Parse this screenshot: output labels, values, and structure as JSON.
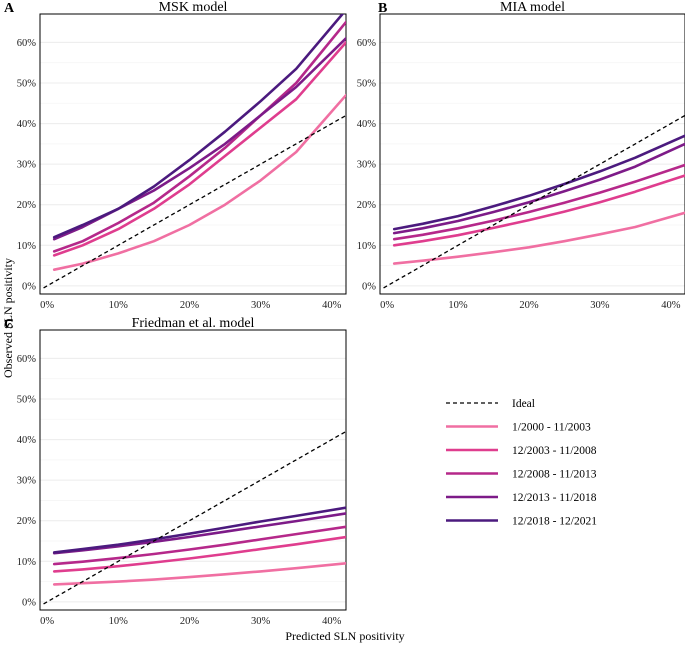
{
  "figure": {
    "xlabel": "Predicted SLN positivity",
    "ylabel": "Observed SLN positivity"
  },
  "legend": {
    "entries": [
      {
        "label": "Ideal",
        "color": "#000000",
        "dashed": true
      },
      {
        "label": "1/2000 - 11/2003",
        "color": "#f06fa2",
        "dashed": false
      },
      {
        "label": "12/2003 - 11/2008",
        "color": "#df3d8e",
        "dashed": false
      },
      {
        "label": "12/2008 - 11/2013",
        "color": "#b5288a",
        "dashed": false
      },
      {
        "label": "12/2013 - 11/2018",
        "color": "#7d1b88",
        "dashed": false
      },
      {
        "label": "12/2018 - 12/2021",
        "color": "#4b1a7e",
        "dashed": false
      }
    ]
  },
  "chart_data": [
    {
      "panel": "A",
      "title": "MSK model",
      "type": "line",
      "xlim": [
        -0.01,
        0.42
      ],
      "ylim": [
        -0.02,
        0.67
      ],
      "xticks": [
        0,
        0.1,
        0.2,
        0.3,
        0.4
      ],
      "yticks": [
        0,
        0.1,
        0.2,
        0.3,
        0.4,
        0.5,
        0.6
      ],
      "xtick_labels": [
        "0%",
        "10%",
        "20%",
        "30%",
        "40%"
      ],
      "ytick_labels": [
        "0%",
        "10%",
        "20%",
        "30%",
        "40%",
        "50%",
        "60%"
      ],
      "x": [
        0.01,
        0.05,
        0.1,
        0.15,
        0.2,
        0.25,
        0.3,
        0.35,
        0.42
      ],
      "series": [
        {
          "name": "1/2000 - 11/2003",
          "values": [
            0.04,
            0.055,
            0.08,
            0.11,
            0.15,
            0.2,
            0.26,
            0.33,
            0.47
          ]
        },
        {
          "name": "12/2003 - 11/2008",
          "values": [
            0.075,
            0.1,
            0.14,
            0.19,
            0.25,
            0.32,
            0.39,
            0.46,
            0.6
          ]
        },
        {
          "name": "12/2008 - 11/2013",
          "values": [
            0.085,
            0.11,
            0.155,
            0.205,
            0.27,
            0.34,
            0.42,
            0.5,
            0.65
          ]
        },
        {
          "name": "12/2013 - 11/2018",
          "values": [
            0.115,
            0.145,
            0.19,
            0.235,
            0.29,
            0.35,
            0.42,
            0.49,
            0.61
          ]
        },
        {
          "name": "12/2018 - 12/2021",
          "values": [
            0.12,
            0.15,
            0.19,
            0.245,
            0.31,
            0.38,
            0.455,
            0.535,
            0.68
          ]
        }
      ],
      "ideal": [
        [
          -0.005,
          -0.005
        ],
        [
          0.42,
          0.42
        ]
      ]
    },
    {
      "panel": "B",
      "title": "MIA model",
      "type": "line",
      "xlim": [
        -0.01,
        0.42
      ],
      "ylim": [
        -0.02,
        0.67
      ],
      "xticks": [
        0,
        0.1,
        0.2,
        0.3,
        0.4
      ],
      "yticks": [
        0,
        0.1,
        0.2,
        0.3,
        0.4,
        0.5,
        0.6
      ],
      "xtick_labels": [
        "0%",
        "10%",
        "20%",
        "30%",
        "40%"
      ],
      "ytick_labels": [
        "0%",
        "10%",
        "20%",
        "30%",
        "40%",
        "50%",
        "60%"
      ],
      "x": [
        0.01,
        0.05,
        0.1,
        0.15,
        0.2,
        0.25,
        0.3,
        0.35,
        0.42
      ],
      "series": [
        {
          "name": "1/2000 - 11/2003",
          "values": [
            0.055,
            0.062,
            0.072,
            0.083,
            0.095,
            0.11,
            0.127,
            0.145,
            0.18
          ]
        },
        {
          "name": "12/2003 - 11/2008",
          "values": [
            0.1,
            0.11,
            0.125,
            0.143,
            0.162,
            0.183,
            0.206,
            0.232,
            0.272
          ]
        },
        {
          "name": "12/2008 - 11/2013",
          "values": [
            0.115,
            0.126,
            0.142,
            0.161,
            0.182,
            0.205,
            0.23,
            0.257,
            0.298
          ]
        },
        {
          "name": "12/2013 - 11/2018",
          "values": [
            0.13,
            0.142,
            0.16,
            0.182,
            0.206,
            0.233,
            0.262,
            0.294,
            0.35
          ]
        },
        {
          "name": "12/2018 - 12/2021",
          "values": [
            0.14,
            0.153,
            0.172,
            0.196,
            0.222,
            0.251,
            0.282,
            0.316,
            0.37
          ]
        }
      ],
      "ideal": [
        [
          -0.005,
          -0.005
        ],
        [
          0.42,
          0.42
        ]
      ]
    },
    {
      "panel": "C",
      "title": "Friedman et al. model",
      "type": "line",
      "xlim": [
        -0.01,
        0.42
      ],
      "ylim": [
        -0.02,
        0.67
      ],
      "xticks": [
        0,
        0.1,
        0.2,
        0.3,
        0.4
      ],
      "yticks": [
        0,
        0.1,
        0.2,
        0.3,
        0.4,
        0.5,
        0.6
      ],
      "xtick_labels": [
        "0%",
        "10%",
        "20%",
        "30%",
        "40%"
      ],
      "ytick_labels": [
        "0%",
        "10%",
        "20%",
        "30%",
        "40%",
        "50%",
        "60%"
      ],
      "x": [
        0.01,
        0.05,
        0.1,
        0.15,
        0.2,
        0.25,
        0.3,
        0.35,
        0.42
      ],
      "series": [
        {
          "name": "1/2000 - 11/2003",
          "values": [
            0.043,
            0.046,
            0.05,
            0.055,
            0.061,
            0.068,
            0.075,
            0.083,
            0.095
          ]
        },
        {
          "name": "12/2003 - 11/2008",
          "values": [
            0.075,
            0.08,
            0.088,
            0.097,
            0.107,
            0.118,
            0.13,
            0.142,
            0.16
          ]
        },
        {
          "name": "12/2008 - 11/2013",
          "values": [
            0.093,
            0.099,
            0.108,
            0.118,
            0.129,
            0.141,
            0.154,
            0.167,
            0.185
          ]
        },
        {
          "name": "12/2013 - 11/2018",
          "values": [
            0.12,
            0.127,
            0.137,
            0.148,
            0.16,
            0.173,
            0.186,
            0.199,
            0.218
          ]
        },
        {
          "name": "12/2018 - 12/2021",
          "values": [
            0.122,
            0.13,
            0.141,
            0.154,
            0.168,
            0.183,
            0.198,
            0.212,
            0.232
          ]
        }
      ],
      "ideal": [
        [
          -0.005,
          -0.005
        ],
        [
          0.42,
          0.42
        ]
      ]
    }
  ]
}
